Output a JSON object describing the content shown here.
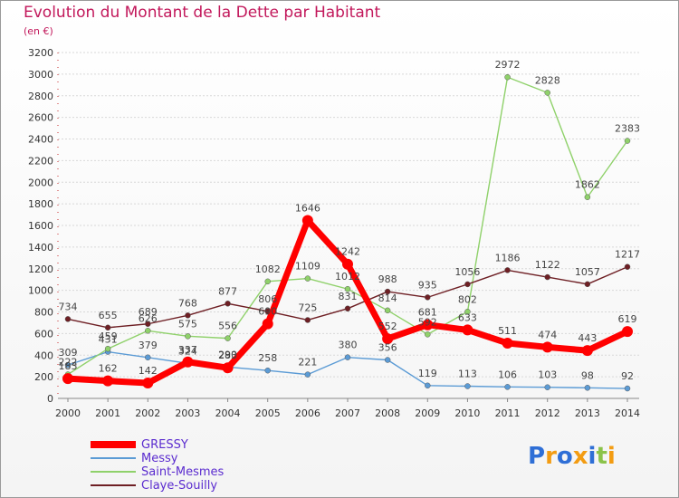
{
  "title": "Evolution du Montant de la Dette par Habitant",
  "subtitle": "(en €)",
  "logo": {
    "letters": [
      "P",
      "r",
      "o",
      "x",
      "i",
      "t",
      "i"
    ],
    "colors": [
      "#2f6fd6",
      "#f39c12",
      "#2f6fd6",
      "#f39c12",
      "#2f6fd6",
      "#8bc34a",
      "#f39c12"
    ]
  },
  "chart_data": {
    "type": "line",
    "title": "Evolution du Montant de la Dette par Habitant",
    "xlabel": "",
    "ylabel": "(en €)",
    "ylim": [
      0,
      3200
    ],
    "yticks": [
      0,
      200,
      400,
      600,
      800,
      1000,
      1200,
      1400,
      1600,
      1800,
      2000,
      2200,
      2400,
      2600,
      2800,
      3000,
      3200
    ],
    "grid": true,
    "legend": "bottom-left",
    "x": [
      "2000",
      "2001",
      "2002",
      "2003",
      "2004",
      "2005",
      "2006",
      "2007",
      "2008",
      "2009",
      "2010",
      "2011",
      "2012",
      "2013",
      "2014"
    ],
    "series": [
      {
        "name": "Messy",
        "color": "#5b9bd5",
        "values": [
          309,
          431,
          379,
          324,
          290,
          258,
          221,
          380,
          356,
          119,
          113,
          106,
          103,
          98,
          92
        ]
      },
      {
        "name": "Saint-Mesmes",
        "color": "#8fd16a",
        "values": [
          222,
          459,
          626,
          575,
          556,
          1082,
          1109,
          1012,
          814,
          592,
          802,
          2972,
          2828,
          1862,
          2383
        ]
      },
      {
        "name": "Claye-Souilly",
        "color": "#6e1f24",
        "values": [
          734,
          655,
          689,
          768,
          877,
          806,
          725,
          831,
          988,
          935,
          1056,
          1186,
          1122,
          1057,
          1217
        ]
      },
      {
        "name": "GRESSY",
        "color": "#ff0000",
        "values": [
          183,
          162,
          142,
          337,
          283,
          690,
          1646,
          1242,
          552,
          681,
          633,
          511,
          474,
          443,
          619
        ]
      }
    ],
    "legend_order": [
      "GRESSY",
      "Messy",
      "Saint-Mesmes",
      "Claye-Souilly"
    ]
  }
}
